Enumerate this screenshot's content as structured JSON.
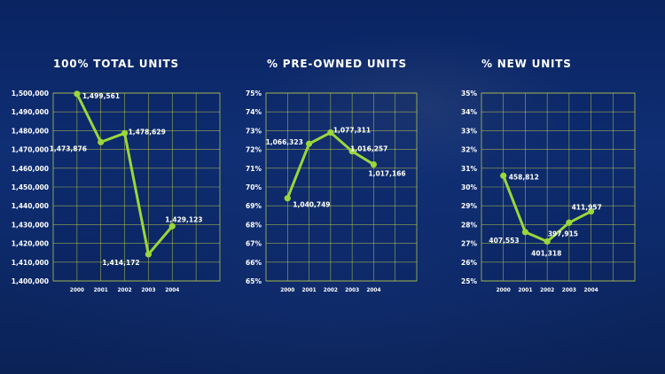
{
  "chart_data": [
    {
      "type": "line",
      "title": "100% TOTAL UNITS",
      "categories": [
        "2000",
        "2001",
        "2002",
        "2003",
        "2004"
      ],
      "values": [
        1499561,
        1473876,
        1478629,
        1414172,
        1429123
      ],
      "data_labels": [
        "1,499,561",
        "1,473,876",
        "1,478,629",
        "1,414,172",
        "1,429,123"
      ],
      "ylim": [
        1400000,
        1500000
      ],
      "yticks": [
        "1,400,000",
        "1,410,000",
        "1,420,000",
        "1,430,000",
        "1,440,000",
        "1,450,000",
        "1,460,000",
        "1,470,000",
        "1,480,000",
        "1,490,000",
        "1,500,000"
      ],
      "grid": true,
      "color": "#9bd63a"
    },
    {
      "type": "line",
      "title": "% PRE-OWNED UNITS",
      "categories": [
        "2000",
        "2001",
        "2002",
        "2003",
        "2004"
      ],
      "values": [
        69.4,
        72.3,
        72.9,
        71.9,
        71.2
      ],
      "data_labels": [
        "1,040,749",
        "1,066,323",
        "1,077,311",
        "1,016,257",
        "1,017,166"
      ],
      "ylim": [
        65,
        75
      ],
      "yticks": [
        "65%",
        "66%",
        "67%",
        "68%",
        "69%",
        "70%",
        "71%",
        "72%",
        "73%",
        "74%",
        "75%"
      ],
      "grid": true,
      "color": "#9bd63a"
    },
    {
      "type": "line",
      "title": "% NEW UNITS",
      "categories": [
        "2000",
        "2001",
        "2002",
        "2003",
        "2004"
      ],
      "values": [
        30.6,
        27.6,
        27.1,
        28.1,
        28.7
      ],
      "data_labels": [
        "458,812",
        "407,553",
        "401,318",
        "397,915",
        "411,957"
      ],
      "ylim": [
        25,
        35
      ],
      "yticks": [
        "25%",
        "26%",
        "27%",
        "28%",
        "29%",
        "30%",
        "31%",
        "32%",
        "33%",
        "34%",
        "35%"
      ],
      "grid": true,
      "color": "#9bd63a"
    }
  ]
}
